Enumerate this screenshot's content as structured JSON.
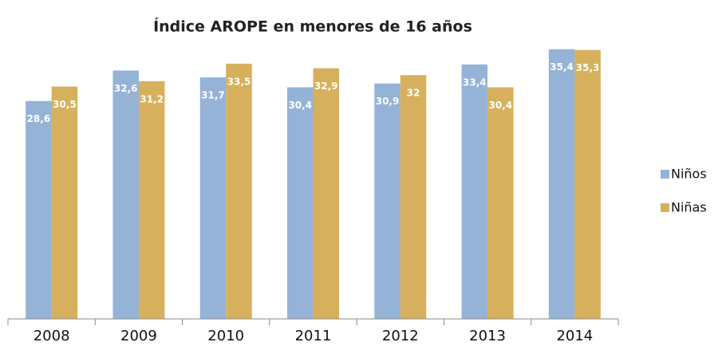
{
  "chart_data": {
    "type": "bar",
    "title": "Índice AROPE en menores de 16 años",
    "categories": [
      "2008",
      "2009",
      "2010",
      "2011",
      "2012",
      "2013",
      "2014"
    ],
    "series": [
      {
        "name": "Niños",
        "color": "#95b3d7",
        "values": [
          28.6,
          32.6,
          31.7,
          30.4,
          30.9,
          33.4,
          35.4
        ],
        "value_labels": [
          "28,6",
          "32,6",
          "31,7",
          "30,4",
          "30,9",
          "33,4",
          "35,4"
        ]
      },
      {
        "name": "Niñas",
        "color": "#d6b05c",
        "values": [
          30.5,
          31.2,
          33.5,
          32.9,
          32,
          30.4,
          35.3
        ],
        "value_labels": [
          "30,5",
          "31,2",
          "33,5",
          "32,9",
          "32",
          "30,4",
          "35,3"
        ]
      }
    ],
    "ylim": [
      0,
      36
    ],
    "legend": "right"
  }
}
